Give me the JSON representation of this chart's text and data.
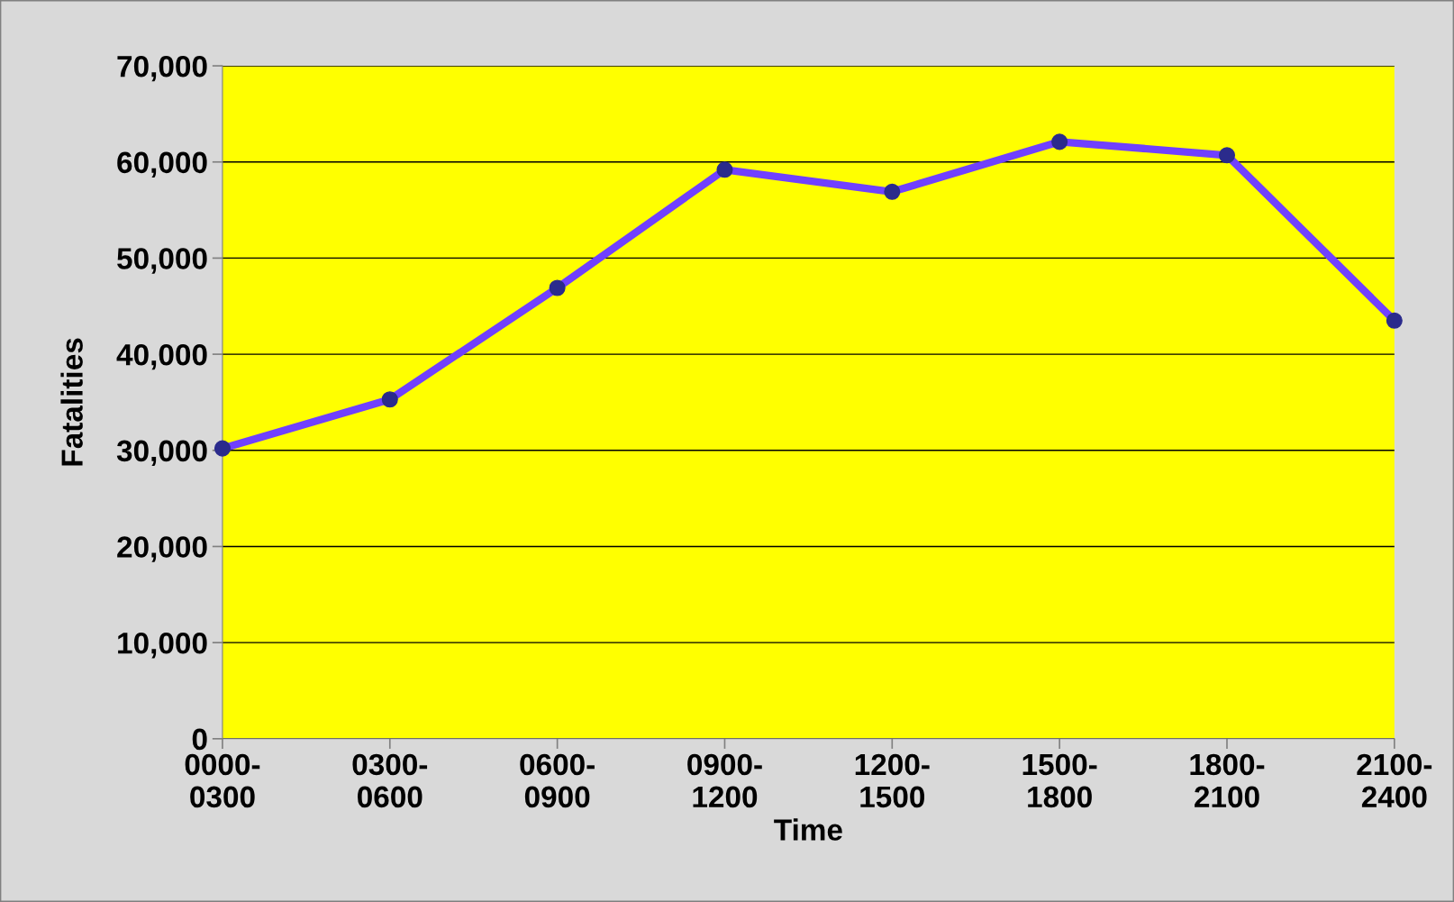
{
  "chart_data": {
    "type": "line",
    "xlabel": "Time",
    "ylabel": "Fatalities",
    "categories": [
      "0000-\n0300",
      "0300-\n0600",
      "0600-\n0900",
      "0900-\n1200",
      "1200-\n1500",
      "1500-\n1800",
      "1800-\n2100",
      "2100-\n2400"
    ],
    "series": [
      {
        "color": "#7040ff",
        "values": [
          30200,
          35300,
          46900,
          59200,
          56900,
          62100,
          60700,
          43500
        ]
      }
    ],
    "ylim": [
      0,
      70000
    ],
    "yticks": [
      {
        "value": 0,
        "label": "0"
      },
      {
        "value": 10000,
        "label": "10,000"
      },
      {
        "value": 20000,
        "label": "20,000"
      },
      {
        "value": 30000,
        "label": "30,000"
      },
      {
        "value": 40000,
        "label": "40,000"
      },
      {
        "value": 50000,
        "label": "50,000"
      },
      {
        "value": 60000,
        "label": "60,000"
      },
      {
        "value": 70000,
        "label": "70,000"
      }
    ],
    "grid": "y",
    "marker": "circle",
    "line_style": "solid",
    "legend": false
  }
}
